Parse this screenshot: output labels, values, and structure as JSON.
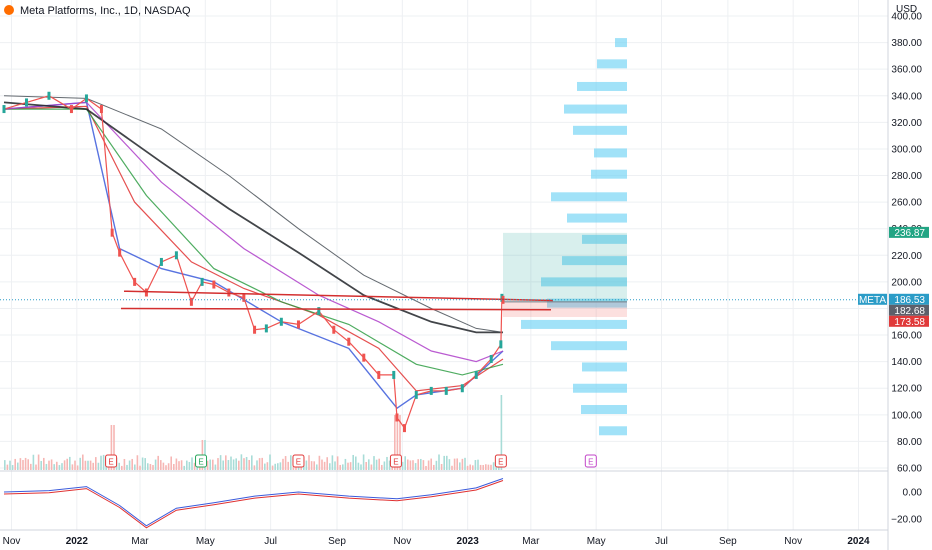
{
  "chart_data": {
    "type": "line",
    "title": "Meta Platforms, Inc., 1D, NASDAQ",
    "symbol": "META",
    "currency": "USD",
    "ylim": [
      60,
      400
    ],
    "y_ticks": [
      "60.00",
      "80.00",
      "100.00",
      "120.00",
      "140.00",
      "160.00",
      "180.00",
      "200.00",
      "220.00",
      "240.00",
      "260.00",
      "280.00",
      "300.00",
      "320.00",
      "340.00",
      "360.00",
      "380.00",
      "400.00"
    ],
    "x_ticks": [
      "Nov",
      "2022",
      "Mar",
      "May",
      "Jul",
      "Sep",
      "Nov",
      "2023",
      "Mar",
      "May",
      "Jul",
      "Sep",
      "Nov",
      "2024"
    ],
    "price_labels": {
      "last": "186.53",
      "level": "182.68",
      "stop": "173.58",
      "target": "236.87"
    },
    "price_levels": {
      "last": 186.53,
      "level": 182.68,
      "stop": 173.58,
      "target": 236.87,
      "entry": 185
    },
    "price_series": {
      "name": "META",
      "x": [
        "2021-10-25",
        "2021-11-15",
        "2021-12-06",
        "2021-12-27",
        "2022-01-10",
        "2022-01-24",
        "2022-02-03",
        "2022-02-10",
        "2022-02-24",
        "2022-03-07",
        "2022-03-21",
        "2022-04-04",
        "2022-04-18",
        "2022-04-28",
        "2022-05-09",
        "2022-05-23",
        "2022-06-06",
        "2022-06-16",
        "2022-06-27",
        "2022-07-11",
        "2022-07-27",
        "2022-08-15",
        "2022-08-29",
        "2022-09-12",
        "2022-09-26",
        "2022-10-10",
        "2022-10-24",
        "2022-10-27",
        "2022-11-03",
        "2022-11-14",
        "2022-11-28",
        "2022-12-12",
        "2022-12-27",
        "2023-01-09",
        "2023-01-23",
        "2023-02-01",
        "2023-02-02",
        "2023-02-03"
      ],
      "y": [
        330,
        335,
        340,
        330,
        338,
        330,
        237,
        222,
        200,
        192,
        215,
        220,
        185,
        200,
        198,
        192,
        188,
        164,
        165,
        170,
        168,
        178,
        164,
        155,
        143,
        130,
        130,
        98,
        90,
        115,
        118,
        118,
        120,
        130,
        142,
        153,
        188,
        186.5
      ]
    },
    "ma_series": [
      {
        "x": [
          "2021-10-25",
          "2022-01-10",
          "2022-02-10",
          "2022-03-21",
          "2022-05-09",
          "2022-07-11",
          "2022-09-12",
          "2022-10-27",
          "2022-11-14",
          "2022-12-27",
          "2023-02-03"
        ],
        "y": [
          330,
          335,
          225,
          210,
          200,
          170,
          150,
          105,
          115,
          120,
          148
        ]
      },
      {
        "x": [
          "2021-10-25",
          "2022-01-10",
          "2022-02-24",
          "2022-04-18",
          "2022-06-06",
          "2022-08-15",
          "2022-10-10",
          "2022-11-14",
          "2022-12-27",
          "2023-02-03"
        ],
        "y": [
          330,
          332,
          260,
          215,
          195,
          175,
          150,
          118,
          122,
          142
        ]
      },
      {
        "x": [
          "2021-10-25",
          "2022-01-10",
          "2022-03-07",
          "2022-05-09",
          "2022-07-11",
          "2022-09-12",
          "2022-11-14",
          "2022-12-27",
          "2023-02-03"
        ],
        "y": [
          330,
          330,
          265,
          210,
          185,
          168,
          138,
          130,
          138
        ]
      },
      {
        "x": [
          "2021-10-25",
          "2022-01-10",
          "2022-03-21",
          "2022-06-06",
          "2022-08-15",
          "2022-10-10",
          "2022-11-28",
          "2023-01-09",
          "2023-02-03"
        ],
        "y": [
          330,
          335,
          275,
          225,
          190,
          170,
          148,
          140,
          148
        ]
      },
      {
        "x": [
          "2021-10-25",
          "2022-01-10",
          "2022-03-21",
          "2022-05-23",
          "2022-07-27",
          "2022-09-26",
          "2022-11-28",
          "2023-01-09",
          "2023-02-03"
        ],
        "y": [
          335,
          330,
          290,
          255,
          222,
          190,
          170,
          162,
          162
        ]
      },
      {
        "x": [
          "2021-10-25",
          "2022-01-10",
          "2022-03-21",
          "2022-05-23",
          "2022-07-27",
          "2022-09-26",
          "2022-11-28",
          "2023-01-09",
          "2023-02-03"
        ],
        "y": [
          340,
          338,
          315,
          280,
          240,
          205,
          180,
          165,
          162
        ]
      }
    ],
    "volume_profile": [
      {
        "price": 380,
        "width": 12
      },
      {
        "price": 364,
        "width": 30
      },
      {
        "price": 347,
        "width": 50
      },
      {
        "price": 330,
        "width": 63
      },
      {
        "price": 314,
        "width": 54
      },
      {
        "price": 297,
        "width": 33
      },
      {
        "price": 281,
        "width": 36
      },
      {
        "price": 264,
        "width": 76
      },
      {
        "price": 248,
        "width": 60
      },
      {
        "price": 232,
        "width": 45
      },
      {
        "price": 216,
        "width": 65
      },
      {
        "price": 200,
        "width": 86
      },
      {
        "price": 184,
        "width": 80
      },
      {
        "price": 168,
        "width": 106
      },
      {
        "price": 152,
        "width": 76
      },
      {
        "price": 136,
        "width": 45
      },
      {
        "price": 120,
        "width": 54
      },
      {
        "price": 104,
        "width": 46
      },
      {
        "price": 88,
        "width": 28
      }
    ],
    "earnings_markers": [
      {
        "x": "2022-02-02",
        "label": "E",
        "color": "#e03a3a"
      },
      {
        "x": "2022-04-27",
        "label": "E",
        "color": "#26a65b"
      },
      {
        "x": "2022-07-27",
        "label": "E",
        "color": "#e03a3a"
      },
      {
        "x": "2022-10-26",
        "label": "E",
        "color": "#e03a3a"
      },
      {
        "x": "2023-02-01",
        "label": "E",
        "color": "#e03a3a"
      },
      {
        "x": "2023-04-26",
        "label": "E",
        "color": "#c245c8"
      }
    ],
    "oscillator": {
      "y_ticks": [
        "0.00",
        "−20.00"
      ],
      "x": [
        "2021-10-25",
        "2021-12-06",
        "2022-01-10",
        "2022-02-10",
        "2022-03-07",
        "2022-04-04",
        "2022-05-09",
        "2022-06-16",
        "2022-07-27",
        "2022-09-12",
        "2022-10-27",
        "2022-11-28",
        "2023-01-09",
        "2023-02-03"
      ],
      "y": [
        0,
        1,
        4,
        -10,
        -25,
        -12,
        -8,
        -3,
        0,
        -3,
        -5,
        -2,
        3,
        10
      ]
    },
    "colors": {
      "up": "#26a69a",
      "down": "#ef5350",
      "volume_profile": "#6fd3f5",
      "support_line": "#d32f2f",
      "target_tag": "#22a584",
      "stop_tag": "#e03a3a",
      "last_tag": "#2b9cc7"
    },
    "grid": true,
    "legend": "none"
  }
}
